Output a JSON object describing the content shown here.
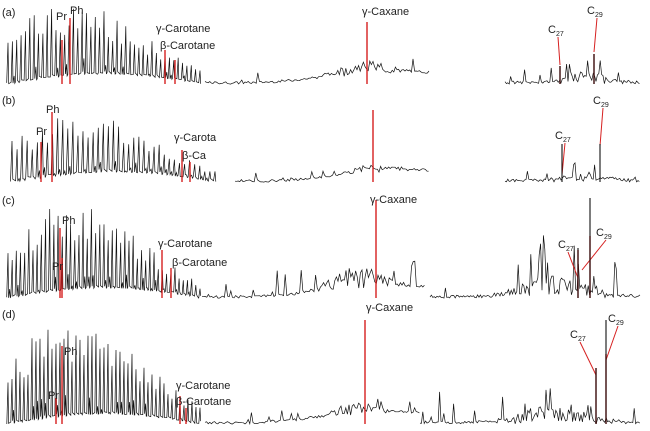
{
  "colors": {
    "trace": "#111111",
    "marker": "#d62020",
    "text": "#222222"
  },
  "chart_data": {
    "type": "line",
    "description_of_axes": "",
    "panels": [
      {
        "label": "(a)",
        "segments": [
          {
            "id": "a-alkanes",
            "annotations": [
              {
                "text": "Pr",
                "sub": ""
              },
              {
                "text": "Ph",
                "sub": ""
              },
              {
                "text": "γ-Carotane",
                "sub": ""
              },
              {
                "text": "β-Carotane",
                "sub": ""
              }
            ]
          },
          {
            "id": "a-terpanes",
            "annotations": [
              {
                "text": "γ-Caxane",
                "sub": ""
              }
            ]
          },
          {
            "id": "a-steranes",
            "annotations": [
              {
                "text": "C",
                "sub": "27"
              },
              {
                "text": "C",
                "sub": "29"
              }
            ]
          }
        ]
      },
      {
        "label": "(b)",
        "segments": [
          {
            "id": "b-alkanes",
            "annotations": [
              {
                "text": "Pr",
                "sub": ""
              },
              {
                "text": "Ph",
                "sub": ""
              },
              {
                "text": "γ-Carota",
                "sub": ""
              },
              {
                "text": "β-Ca",
                "sub": ""
              }
            ]
          },
          {
            "id": "b-terpanes",
            "annotations": []
          },
          {
            "id": "b-steranes",
            "annotations": [
              {
                "text": "C",
                "sub": "27"
              },
              {
                "text": "C",
                "sub": "29"
              }
            ]
          }
        ]
      },
      {
        "label": "(c)",
        "segments": [
          {
            "id": "c-alkanes",
            "annotations": [
              {
                "text": "Ph",
                "sub": ""
              },
              {
                "text": "Pr",
                "sub": ""
              },
              {
                "text": "γ-Carotane",
                "sub": ""
              },
              {
                "text": "β-Carotane",
                "sub": ""
              }
            ]
          },
          {
            "id": "c-terpanes",
            "annotations": [
              {
                "text": "γ-Caxane",
                "sub": ""
              }
            ]
          },
          {
            "id": "c-steranes",
            "annotations": [
              {
                "text": "C",
                "sub": "27"
              },
              {
                "text": "C",
                "sub": "29"
              }
            ]
          }
        ]
      },
      {
        "label": "(d)",
        "segments": [
          {
            "id": "d-alkanes",
            "annotations": [
              {
                "text": "Ph",
                "sub": ""
              },
              {
                "text": "Pr",
                "sub": ""
              },
              {
                "text": "γ-Carotane",
                "sub": ""
              },
              {
                "text": "β-Carotane",
                "sub": ""
              }
            ]
          },
          {
            "id": "d-terpanes",
            "annotations": [
              {
                "text": "γ-Caxane",
                "sub": ""
              }
            ]
          },
          {
            "id": "d-steranes",
            "annotations": [
              {
                "text": "C",
                "sub": "27"
              },
              {
                "text": "C",
                "sub": "29"
              }
            ]
          }
        ]
      }
    ]
  }
}
